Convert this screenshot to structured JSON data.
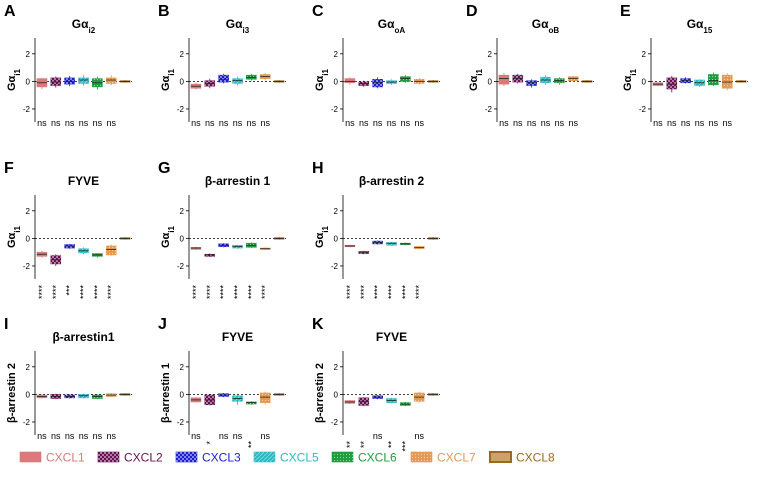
{
  "legend": [
    {
      "name": "CXCL1",
      "color": "#d9797b"
    },
    {
      "name": "CXCL2",
      "color": "#6a1054"
    },
    {
      "name": "CXCL3",
      "color": "#1c1fd0"
    },
    {
      "name": "CXCL5",
      "color": "#2cb9c4"
    },
    {
      "name": "CXCL6",
      "color": "#1d9e3e"
    },
    {
      "name": "CXCL7",
      "color": "#e39a52"
    },
    {
      "name": "CXCL8",
      "color": "#9b6a1c"
    }
  ],
  "chart_data": [
    {
      "letter": "A",
      "title": "Gα",
      "title_sub": "i2",
      "ylabel": "Gα",
      "ylabel_sub": "i1",
      "ylim": [
        -2.8,
        3.0
      ],
      "ticks": [
        2,
        0,
        -2
      ],
      "medians": [
        -0.1,
        -0.05,
        0.0,
        0.1,
        -0.1,
        0.1,
        0.0
      ],
      "boxes": [
        [
          -0.4,
          0.2
        ],
        [
          -0.3,
          0.25
        ],
        [
          -0.2,
          0.25
        ],
        [
          -0.15,
          0.25
        ],
        [
          -0.4,
          0.2
        ],
        [
          -0.15,
          0.25
        ],
        [
          -0.05,
          0.05
        ]
      ],
      "whiskers": [
        [
          -0.55,
          0.25
        ],
        [
          -0.45,
          0.35
        ],
        [
          -0.35,
          0.4
        ],
        [
          -0.3,
          0.45
        ],
        [
          -0.6,
          0.35
        ],
        [
          -0.3,
          0.45
        ],
        [
          -0.1,
          0.1
        ]
      ],
      "sig": [
        "ns",
        "ns",
        "ns",
        "ns",
        "ns",
        "ns"
      ]
    },
    {
      "letter": "B",
      "title": "Gα",
      "title_sub": "i3",
      "ylabel": "Gα",
      "ylabel_sub": "i1",
      "ylim": [
        -2.8,
        3.0
      ],
      "ticks": [
        2,
        0,
        -2
      ],
      "medians": [
        -0.35,
        -0.15,
        0.15,
        0.05,
        0.3,
        0.35,
        0.0
      ],
      "boxes": [
        [
          -0.5,
          -0.2
        ],
        [
          -0.35,
          0.05
        ],
        [
          -0.05,
          0.45
        ],
        [
          -0.15,
          0.2
        ],
        [
          0.15,
          0.45
        ],
        [
          0.2,
          0.5
        ],
        [
          -0.05,
          0.05
        ]
      ],
      "whiskers": [
        [
          -0.6,
          -0.1
        ],
        [
          -0.5,
          0.2
        ],
        [
          -0.15,
          0.55
        ],
        [
          -0.3,
          0.35
        ],
        [
          0.05,
          0.55
        ],
        [
          0.05,
          0.6
        ],
        [
          -0.1,
          0.1
        ]
      ],
      "sig": [
        "ns",
        "ns",
        "ns",
        "ns",
        "ns",
        "ns"
      ]
    },
    {
      "letter": "C",
      "title": "Gα",
      "title_sub": "oA",
      "ylabel": "Gα",
      "ylabel_sub": "i1",
      "ylim": [
        -2.8,
        3.0
      ],
      "ticks": [
        2,
        0,
        -2
      ],
      "medians": [
        0.0,
        -0.15,
        -0.1,
        -0.05,
        0.2,
        0.0,
        0.0
      ],
      "boxes": [
        [
          -0.1,
          0.2
        ],
        [
          -0.3,
          -0.05
        ],
        [
          -0.4,
          0.15
        ],
        [
          -0.15,
          0.05
        ],
        [
          0.0,
          0.35
        ],
        [
          -0.15,
          0.15
        ],
        [
          -0.05,
          0.05
        ]
      ],
      "whiskers": [
        [
          -0.25,
          0.3
        ],
        [
          -0.4,
          0.05
        ],
        [
          -0.5,
          0.3
        ],
        [
          -0.25,
          0.15
        ],
        [
          -0.1,
          0.45
        ],
        [
          -0.25,
          0.25
        ],
        [
          -0.1,
          0.1
        ]
      ],
      "sig": [
        "ns",
        "ns",
        "ns",
        "ns",
        "ns",
        "ns"
      ]
    },
    {
      "letter": "D",
      "title": "Gα",
      "title_sub": "oB",
      "ylabel": "Gα",
      "ylabel_sub": "i1",
      "ylim": [
        -2.8,
        3.0
      ],
      "ticks": [
        2,
        0,
        -2
      ],
      "medians": [
        0.2,
        0.2,
        -0.1,
        0.1,
        0.05,
        0.2,
        0.0
      ],
      "boxes": [
        [
          -0.2,
          0.45
        ],
        [
          -0.05,
          0.45
        ],
        [
          -0.3,
          0.05
        ],
        [
          -0.1,
          0.3
        ],
        [
          -0.1,
          0.2
        ],
        [
          0.05,
          0.35
        ],
        [
          -0.05,
          0.05
        ]
      ],
      "whiskers": [
        [
          -0.35,
          0.6
        ],
        [
          -0.15,
          0.55
        ],
        [
          -0.45,
          0.15
        ],
        [
          -0.25,
          0.45
        ],
        [
          -0.25,
          0.3
        ],
        [
          -0.05,
          0.4
        ],
        [
          -0.1,
          0.1
        ]
      ],
      "sig": [
        "ns",
        "ns",
        "ns",
        "ns",
        "ns",
        "ns"
      ]
    },
    {
      "letter": "E",
      "title": "Gα",
      "title_sub": "15",
      "ylabel": "Gα",
      "ylabel_sub": "i1",
      "ylim": [
        -2.8,
        3.0
      ],
      "ticks": [
        2,
        0,
        -2
      ],
      "medians": [
        -0.2,
        -0.2,
        0.05,
        -0.1,
        0.05,
        -0.05,
        0.0
      ],
      "boxes": [
        [
          -0.3,
          -0.1
        ],
        [
          -0.55,
          0.25
        ],
        [
          -0.1,
          0.2
        ],
        [
          -0.3,
          0.1
        ],
        [
          -0.25,
          0.5
        ],
        [
          -0.5,
          0.45
        ],
        [
          -0.05,
          0.05
        ]
      ],
      "whiskers": [
        [
          -0.35,
          -0.05
        ],
        [
          -0.8,
          0.4
        ],
        [
          -0.15,
          0.3
        ],
        [
          -0.4,
          0.15
        ],
        [
          -0.35,
          0.65
        ],
        [
          -0.65,
          0.6
        ],
        [
          -0.1,
          0.1
        ]
      ],
      "sig": [
        "ns",
        "ns",
        "ns",
        "ns",
        "ns",
        "ns"
      ]
    },
    {
      "letter": "F",
      "title": "FYVE",
      "title_sub": "",
      "ylabel": "Gα",
      "ylabel_sub": "i1",
      "ylim": [
        -2.8,
        3.0
      ],
      "ticks": [
        2,
        0,
        -2
      ],
      "medians": [
        -1.15,
        -1.55,
        -0.55,
        -0.9,
        -1.2,
        -0.8,
        0.0
      ],
      "boxes": [
        [
          -1.3,
          -1.0
        ],
        [
          -1.85,
          -1.25
        ],
        [
          -0.7,
          -0.45
        ],
        [
          -1.05,
          -0.75
        ],
        [
          -1.3,
          -1.1
        ],
        [
          -1.2,
          -0.55
        ],
        [
          -0.05,
          0.05
        ]
      ],
      "whiskers": [
        [
          -1.4,
          -0.9
        ],
        [
          -2.0,
          -1.15
        ],
        [
          -0.75,
          -0.4
        ],
        [
          -1.15,
          -0.65
        ],
        [
          -1.4,
          -1.05
        ],
        [
          -1.25,
          -0.45
        ],
        [
          -0.1,
          0.1
        ]
      ],
      "sig": [
        "****",
        "****",
        "***",
        "****",
        "****",
        "****"
      ]
    },
    {
      "letter": "G",
      "title": "β-arrestin 1",
      "title_sub": "",
      "ylabel": "Gα",
      "ylabel_sub": "i1",
      "ylim": [
        -2.8,
        3.0
      ],
      "ticks": [
        2,
        0,
        -2
      ],
      "medians": [
        -0.7,
        -1.2,
        -0.5,
        -0.6,
        -0.5,
        -0.75,
        0.0
      ],
      "boxes": [
        [
          -0.8,
          -0.65
        ],
        [
          -1.3,
          -1.15
        ],
        [
          -0.6,
          -0.4
        ],
        [
          -0.7,
          -0.5
        ],
        [
          -0.65,
          -0.35
        ],
        [
          -0.8,
          -0.7
        ],
        [
          -0.05,
          0.05
        ]
      ],
      "whiskers": [
        [
          -0.85,
          -0.6
        ],
        [
          -1.35,
          -1.1
        ],
        [
          -0.65,
          -0.35
        ],
        [
          -0.75,
          -0.45
        ],
        [
          -0.7,
          -0.3
        ],
        [
          -0.85,
          -0.65
        ],
        [
          -0.1,
          0.1
        ]
      ],
      "sig": [
        "****",
        "****",
        "****",
        "****",
        "****",
        "****"
      ]
    },
    {
      "letter": "H",
      "title": "β-arrestin 2",
      "title_sub": "",
      "ylabel": "Gα",
      "ylabel_sub": "i1",
      "ylim": [
        -2.8,
        3.0
      ],
      "ticks": [
        2,
        0,
        -2
      ],
      "medians": [
        -0.55,
        -1.0,
        -0.3,
        -0.35,
        -0.4,
        -0.65,
        0.0
      ],
      "boxes": [
        [
          -0.6,
          -0.5
        ],
        [
          -1.1,
          -0.95
        ],
        [
          -0.4,
          -0.2
        ],
        [
          -0.5,
          -0.3
        ],
        [
          -0.45,
          -0.35
        ],
        [
          -0.75,
          -0.6
        ],
        [
          -0.05,
          0.05
        ]
      ],
      "whiskers": [
        [
          -0.65,
          -0.45
        ],
        [
          -1.15,
          -0.9
        ],
        [
          -0.45,
          -0.15
        ],
        [
          -0.55,
          -0.25
        ],
        [
          -0.5,
          -0.3
        ],
        [
          -0.8,
          -0.55
        ],
        [
          -0.1,
          0.1
        ]
      ],
      "sig": [
        "****",
        "****",
        "****",
        "****",
        "****",
        "****"
      ]
    },
    {
      "letter": "I",
      "title": "β-arrestin1",
      "title_sub": "",
      "ylabel": "β-arrestin 2",
      "ylabel_sub": "",
      "ylim": [
        -2.8,
        3.0
      ],
      "ticks": [
        2,
        0,
        -2
      ],
      "medians": [
        -0.15,
        -0.15,
        -0.15,
        -0.1,
        -0.15,
        -0.05,
        0.0
      ],
      "boxes": [
        [
          -0.25,
          -0.05
        ],
        [
          -0.3,
          0.0
        ],
        [
          -0.25,
          -0.05
        ],
        [
          -0.25,
          0.0
        ],
        [
          -0.3,
          -0.05
        ],
        [
          -0.15,
          0.05
        ],
        [
          -0.05,
          0.05
        ]
      ],
      "whiskers": [
        [
          -0.3,
          0.0
        ],
        [
          -0.35,
          0.05
        ],
        [
          -0.3,
          0.0
        ],
        [
          -0.3,
          0.05
        ],
        [
          -0.35,
          0.0
        ],
        [
          -0.2,
          0.1
        ],
        [
          -0.1,
          0.1
        ]
      ],
      "sig": [
        "ns",
        "ns",
        "ns",
        "ns",
        "ns",
        "ns"
      ]
    },
    {
      "letter": "J",
      "title": "FYVE",
      "title_sub": "",
      "ylabel": "β-arrestin 1",
      "ylabel_sub": "",
      "ylim": [
        -2.8,
        3.0
      ],
      "ticks": [
        2,
        0,
        -2
      ],
      "medians": [
        -0.4,
        -0.4,
        -0.05,
        -0.3,
        -0.6,
        -0.2,
        0.0
      ],
      "boxes": [
        [
          -0.55,
          -0.25
        ],
        [
          -0.75,
          -0.05
        ],
        [
          -0.15,
          0.05
        ],
        [
          -0.5,
          -0.1
        ],
        [
          -0.7,
          -0.55
        ],
        [
          -0.6,
          0.1
        ],
        [
          -0.05,
          0.05
        ]
      ],
      "whiskers": [
        [
          -0.6,
          -0.2
        ],
        [
          -0.8,
          0.0
        ],
        [
          -0.2,
          0.1
        ],
        [
          -0.75,
          -0.05
        ],
        [
          -0.75,
          -0.5
        ],
        [
          -0.75,
          0.2
        ],
        [
          -0.1,
          0.1
        ]
      ],
      "sig": [
        "ns",
        "*",
        "ns",
        "ns",
        "**",
        "ns"
      ]
    },
    {
      "letter": "K",
      "title": "FYVE",
      "title_sub": "",
      "ylabel": "β-arrestin 2",
      "ylabel_sub": "",
      "ylim": [
        -2.8,
        3.0
      ],
      "ticks": [
        2,
        0,
        -2
      ],
      "medians": [
        -0.55,
        -0.5,
        -0.2,
        -0.45,
        -0.7,
        -0.2,
        0.0
      ],
      "boxes": [
        [
          -0.65,
          -0.45
        ],
        [
          -0.8,
          -0.25
        ],
        [
          -0.3,
          -0.1
        ],
        [
          -0.6,
          -0.3
        ],
        [
          -0.8,
          -0.6
        ],
        [
          -0.5,
          0.1
        ],
        [
          -0.05,
          0.05
        ]
      ],
      "whiskers": [
        [
          -0.7,
          -0.4
        ],
        [
          -0.85,
          -0.2
        ],
        [
          -0.35,
          -0.05
        ],
        [
          -0.65,
          -0.25
        ],
        [
          -0.85,
          -0.55
        ],
        [
          -0.6,
          0.2
        ],
        [
          -0.1,
          0.1
        ]
      ],
      "sig": [
        "**",
        "**",
        "ns",
        "**",
        "***",
        "ns"
      ]
    }
  ]
}
